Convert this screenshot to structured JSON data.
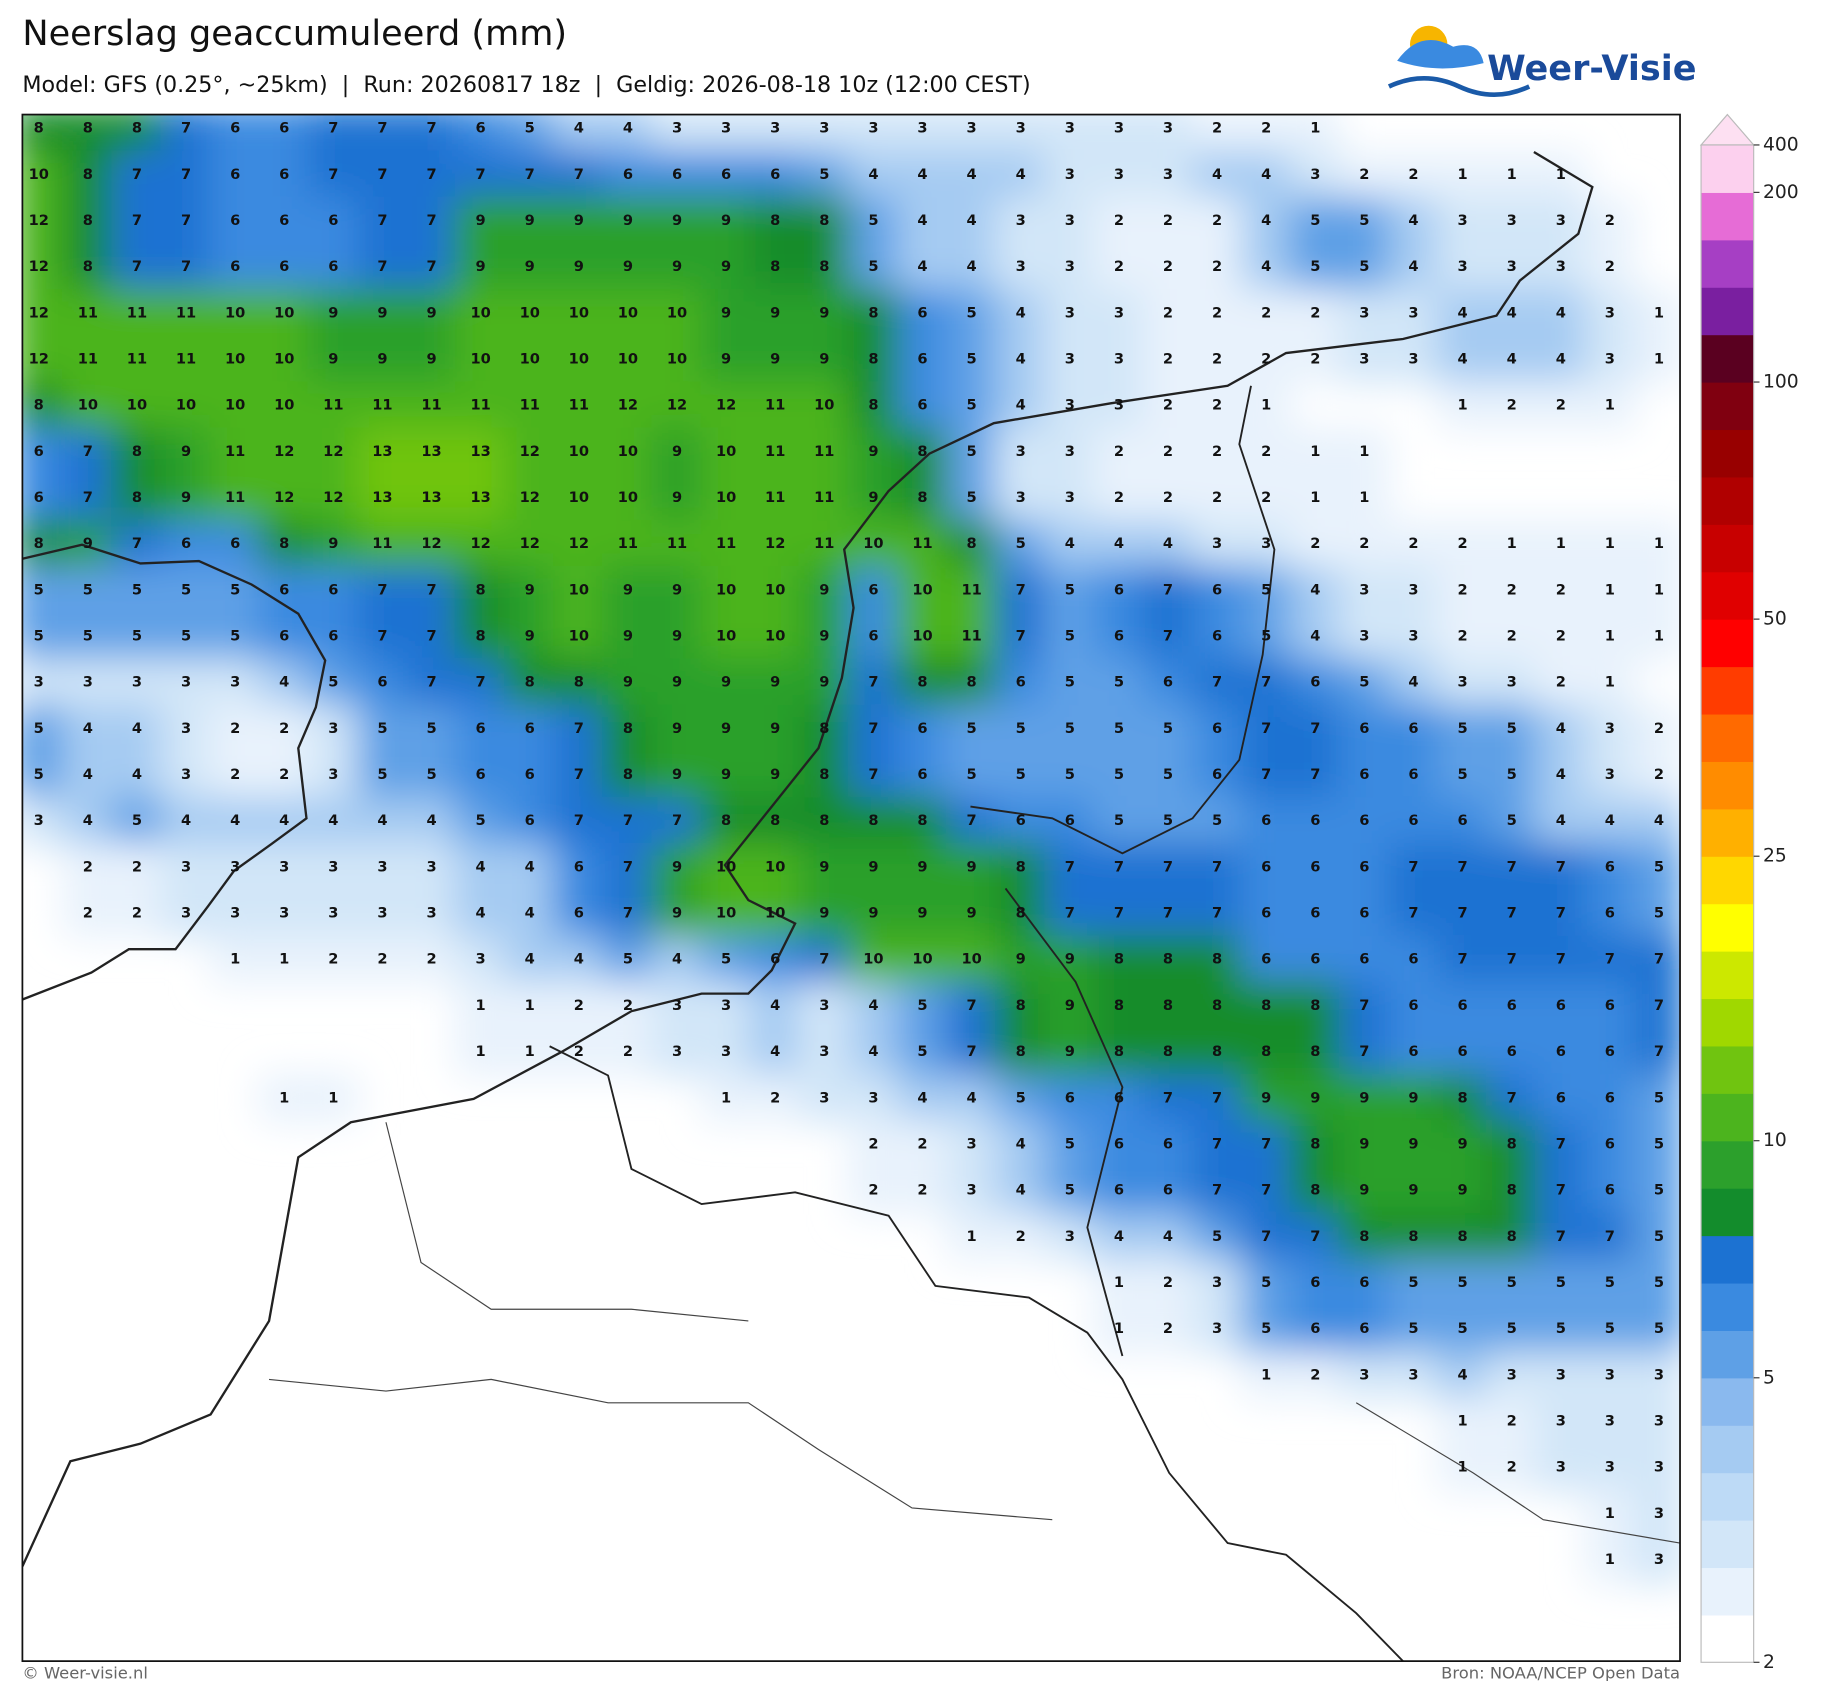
{
  "header": {
    "title": "Neerslag geaccumuleerd (mm)",
    "subtitle": "Model: GFS (0.25°, ~25km)  |  Run: 20260817 18z  |  Geldig: 2026-08-18 10z (12:00 CEST)",
    "logo": "Weer-Visie"
  },
  "grid": {
    "rows": [
      [
        8,
        8,
        8,
        7,
        6,
        6,
        7,
        7,
        7,
        6,
        5,
        4,
        4,
        3,
        3,
        3,
        3,
        3,
        3,
        3,
        3,
        3,
        3,
        3,
        2,
        2,
        1,
        null,
        null,
        null,
        null,
        null,
        null,
        null
      ],
      [
        10,
        8,
        7,
        7,
        6,
        6,
        7,
        7,
        7,
        7,
        7,
        7,
        6,
        6,
        6,
        6,
        5,
        4,
        4,
        4,
        4,
        3,
        3,
        3,
        4,
        4,
        3,
        2,
        2,
        1,
        1,
        1,
        null,
        null
      ],
      [
        12,
        8,
        7,
        7,
        6,
        6,
        6,
        7,
        7,
        9,
        9,
        9,
        9,
        9,
        9,
        8,
        8,
        5,
        4,
        4,
        3,
        3,
        2,
        2,
        2,
        4,
        5,
        5,
        4,
        3,
        3,
        3,
        2,
        null
      ],
      [
        12,
        8,
        7,
        7,
        6,
        6,
        6,
        7,
        7,
        9,
        9,
        9,
        9,
        9,
        9,
        8,
        8,
        5,
        4,
        4,
        3,
        3,
        2,
        2,
        2,
        4,
        5,
        5,
        4,
        3,
        3,
        3,
        2,
        null
      ],
      [
        12,
        11,
        11,
        11,
        10,
        10,
        9,
        9,
        9,
        10,
        10,
        10,
        10,
        10,
        9,
        9,
        9,
        8,
        6,
        5,
        4,
        3,
        3,
        2,
        2,
        2,
        2,
        3,
        3,
        4,
        4,
        4,
        3,
        1
      ],
      [
        12,
        11,
        11,
        11,
        10,
        10,
        9,
        9,
        9,
        10,
        10,
        10,
        10,
        10,
        9,
        9,
        9,
        8,
        6,
        5,
        4,
        3,
        3,
        2,
        2,
        2,
        2,
        3,
        3,
        4,
        4,
        4,
        3,
        1
      ],
      [
        8,
        10,
        10,
        10,
        10,
        10,
        11,
        11,
        11,
        11,
        11,
        11,
        12,
        12,
        12,
        11,
        10,
        8,
        6,
        5,
        4,
        3,
        3,
        2,
        2,
        1,
        null,
        null,
        null,
        1,
        2,
        2,
        1,
        null
      ],
      [
        6,
        7,
        8,
        9,
        11,
        12,
        12,
        13,
        13,
        13,
        12,
        10,
        10,
        9,
        10,
        11,
        11,
        9,
        8,
        5,
        3,
        3,
        2,
        2,
        2,
        2,
        1,
        1,
        null,
        null,
        null,
        null,
        null,
        null
      ],
      [
        6,
        7,
        8,
        9,
        11,
        12,
        12,
        13,
        13,
        13,
        12,
        10,
        10,
        9,
        10,
        11,
        11,
        9,
        8,
        5,
        3,
        3,
        2,
        2,
        2,
        2,
        1,
        1,
        null,
        null,
        null,
        null,
        null,
        null
      ],
      [
        8,
        9,
        7,
        6,
        6,
        8,
        9,
        11,
        12,
        12,
        12,
        12,
        11,
        11,
        11,
        12,
        11,
        10,
        11,
        8,
        5,
        4,
        4,
        4,
        3,
        3,
        2,
        2,
        2,
        2,
        1,
        1,
        1,
        1
      ],
      [
        5,
        5,
        5,
        5,
        5,
        6,
        6,
        7,
        7,
        8,
        9,
        10,
        9,
        9,
        10,
        10,
        9,
        6,
        10,
        11,
        7,
        5,
        6,
        7,
        6,
        5,
        4,
        3,
        3,
        2,
        2,
        2,
        1,
        1
      ],
      [
        5,
        5,
        5,
        5,
        5,
        6,
        6,
        7,
        7,
        8,
        9,
        10,
        9,
        9,
        10,
        10,
        9,
        6,
        10,
        11,
        7,
        5,
        6,
        7,
        6,
        5,
        4,
        3,
        3,
        2,
        2,
        2,
        1,
        1
      ],
      [
        3,
        3,
        3,
        3,
        3,
        4,
        5,
        6,
        7,
        7,
        8,
        8,
        9,
        9,
        9,
        9,
        9,
        7,
        8,
        8,
        6,
        5,
        5,
        6,
        7,
        7,
        6,
        5,
        4,
        3,
        3,
        2,
        1,
        null
      ],
      [
        5,
        4,
        4,
        3,
        2,
        2,
        3,
        5,
        5,
        6,
        6,
        7,
        8,
        9,
        9,
        9,
        8,
        7,
        6,
        5,
        5,
        5,
        5,
        5,
        6,
        7,
        7,
        6,
        6,
        5,
        5,
        4,
        3,
        2
      ],
      [
        5,
        4,
        4,
        3,
        2,
        2,
        3,
        5,
        5,
        6,
        6,
        7,
        8,
        9,
        9,
        9,
        8,
        7,
        6,
        5,
        5,
        5,
        5,
        5,
        6,
        7,
        7,
        6,
        6,
        5,
        5,
        4,
        3,
        2
      ],
      [
        3,
        4,
        5,
        4,
        4,
        4,
        4,
        4,
        4,
        5,
        6,
        7,
        7,
        7,
        8,
        8,
        8,
        8,
        8,
        7,
        6,
        6,
        5,
        5,
        5,
        6,
        6,
        6,
        6,
        6,
        5,
        4,
        4,
        4
      ],
      [
        null,
        2,
        2,
        3,
        3,
        3,
        3,
        3,
        3,
        4,
        4,
        6,
        7,
        9,
        10,
        10,
        9,
        9,
        9,
        9,
        8,
        7,
        7,
        7,
        7,
        6,
        6,
        6,
        7,
        7,
        7,
        7,
        6,
        5
      ],
      [
        null,
        2,
        2,
        3,
        3,
        3,
        3,
        3,
        3,
        4,
        4,
        6,
        7,
        9,
        10,
        10,
        9,
        9,
        9,
        9,
        8,
        7,
        7,
        7,
        7,
        6,
        6,
        6,
        7,
        7,
        7,
        7,
        6,
        5
      ],
      [
        null,
        null,
        null,
        null,
        1,
        1,
        2,
        2,
        2,
        3,
        4,
        4,
        5,
        4,
        5,
        6,
        7,
        10,
        10,
        10,
        9,
        9,
        8,
        8,
        8,
        6,
        6,
        6,
        6,
        7,
        7,
        7,
        7,
        7
      ],
      [
        null,
        null,
        null,
        null,
        null,
        null,
        null,
        null,
        null,
        1,
        1,
        2,
        2,
        3,
        3,
        4,
        3,
        4,
        5,
        7,
        8,
        9,
        8,
        8,
        8,
        8,
        8,
        7,
        6,
        6,
        6,
        6,
        6,
        7
      ],
      [
        null,
        null,
        null,
        null,
        null,
        null,
        null,
        null,
        null,
        1,
        1,
        2,
        2,
        3,
        3,
        4,
        3,
        4,
        5,
        7,
        8,
        9,
        8,
        8,
        8,
        8,
        8,
        7,
        6,
        6,
        6,
        6,
        6,
        7
      ],
      [
        null,
        null,
        null,
        null,
        null,
        1,
        1,
        null,
        null,
        null,
        null,
        null,
        null,
        null,
        1,
        2,
        3,
        3,
        4,
        4,
        5,
        6,
        6,
        7,
        7,
        9,
        9,
        9,
        9,
        8,
        7,
        6,
        6,
        5
      ],
      [
        null,
        null,
        null,
        null,
        null,
        null,
        null,
        null,
        null,
        null,
        null,
        null,
        null,
        null,
        null,
        null,
        null,
        2,
        2,
        3,
        4,
        5,
        6,
        6,
        7,
        7,
        8,
        9,
        9,
        9,
        8,
        7,
        6,
        5
      ],
      [
        null,
        null,
        null,
        null,
        null,
        null,
        null,
        null,
        null,
        null,
        null,
        null,
        null,
        null,
        null,
        null,
        null,
        2,
        2,
        3,
        4,
        5,
        6,
        6,
        7,
        7,
        8,
        9,
        9,
        9,
        8,
        7,
        6,
        5
      ],
      [
        null,
        null,
        null,
        null,
        null,
        null,
        null,
        null,
        null,
        null,
        null,
        null,
        null,
        null,
        null,
        null,
        null,
        null,
        null,
        1,
        2,
        3,
        4,
        4,
        5,
        7,
        7,
        8,
        8,
        8,
        8,
        7,
        7,
        5
      ],
      [
        null,
        null,
        null,
        null,
        null,
        null,
        null,
        null,
        null,
        null,
        null,
        null,
        null,
        null,
        null,
        null,
        null,
        null,
        null,
        null,
        null,
        null,
        1,
        2,
        3,
        5,
        6,
        6,
        5,
        5,
        5,
        5,
        5,
        5
      ],
      [
        null,
        null,
        null,
        null,
        null,
        null,
        null,
        null,
        null,
        null,
        null,
        null,
        null,
        null,
        null,
        null,
        null,
        null,
        null,
        null,
        null,
        null,
        1,
        2,
        3,
        5,
        6,
        6,
        5,
        5,
        5,
        5,
        5,
        5
      ],
      [
        null,
        null,
        null,
        null,
        null,
        null,
        null,
        null,
        null,
        null,
        null,
        null,
        null,
        null,
        null,
        null,
        null,
        null,
        null,
        null,
        null,
        null,
        null,
        null,
        null,
        1,
        2,
        3,
        3,
        4,
        3,
        3,
        3,
        3
      ],
      [
        null,
        null,
        null,
        null,
        null,
        null,
        null,
        null,
        null,
        null,
        null,
        null,
        null,
        null,
        null,
        null,
        null,
        null,
        null,
        null,
        null,
        null,
        null,
        null,
        null,
        null,
        null,
        null,
        null,
        1,
        2,
        3,
        3,
        3
      ],
      [
        null,
        null,
        null,
        null,
        null,
        null,
        null,
        null,
        null,
        null,
        null,
        null,
        null,
        null,
        null,
        null,
        null,
        null,
        null,
        null,
        null,
        null,
        null,
        null,
        null,
        null,
        null,
        null,
        null,
        1,
        2,
        3,
        3,
        3
      ],
      [
        null,
        null,
        null,
        null,
        null,
        null,
        null,
        null,
        null,
        null,
        null,
        null,
        null,
        null,
        null,
        null,
        null,
        null,
        null,
        null,
        null,
        null,
        null,
        null,
        null,
        null,
        null,
        null,
        null,
        null,
        null,
        null,
        1,
        3
      ],
      [
        null,
        null,
        null,
        null,
        null,
        null,
        null,
        null,
        null,
        null,
        null,
        null,
        null,
        null,
        null,
        null,
        null,
        null,
        null,
        null,
        null,
        null,
        null,
        null,
        null,
        null,
        null,
        null,
        null,
        null,
        null,
        null,
        1,
        3
      ]
    ]
  },
  "colorbar": {
    "ticks": [
      2,
      5,
      10,
      25,
      50,
      100,
      200,
      400
    ],
    "colors": [
      "#ffffff",
      "#e8f2fc",
      "#d2e6f8",
      "#bddaf6",
      "#a5cbf2",
      "#8ab9ee",
      "#5ea0e6",
      "#3a8ae0",
      "#1c72d2",
      "#138c2c",
      "#2ca02c",
      "#4cb41e",
      "#70c410",
      "#a0d800",
      "#cce800",
      "#ffff00",
      "#ffd700",
      "#ffb000",
      "#ff8c00",
      "#ff6a00",
      "#ff3c00",
      "#ff0000",
      "#e00000",
      "#c80000",
      "#b00000",
      "#980000",
      "#800010",
      "#5a0020",
      "#7a1fa0",
      "#a63fc4",
      "#e66cd6",
      "#fcd0ee"
    ],
    "over_color": "#fde0f2"
  },
  "footer": {
    "left": "© Weer-visie.nl",
    "right": "Bron: NOAA/NCEP Open Data"
  }
}
